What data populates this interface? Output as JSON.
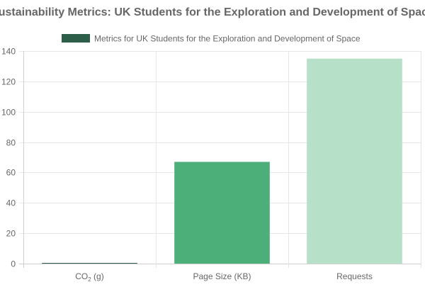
{
  "chart_data": {
    "type": "bar",
    "title": "Sustainability Metrics: UK Students for the Exploration and Development of Space",
    "legend": {
      "position": "top-center"
    },
    "categories": [
      {
        "base": "CO",
        "sub": "2",
        "suffix": " (g)"
      },
      {
        "base": "Page Size (KB)",
        "sub": "",
        "suffix": ""
      },
      {
        "base": "Requests",
        "sub": "",
        "suffix": ""
      }
    ],
    "series": [
      {
        "name": "Metrics for UK Students for the Exploration and Development of Space",
        "values": [
          0.3,
          67,
          135
        ],
        "colors": [
          "#2d5e4a",
          "#4caf7a",
          "#b6e0c8"
        ],
        "legend_color": "#2d5e4a"
      }
    ],
    "ylim": [
      0,
      140
    ],
    "yticks": [
      0,
      20,
      40,
      60,
      80,
      100,
      120,
      140
    ],
    "grid": true
  }
}
